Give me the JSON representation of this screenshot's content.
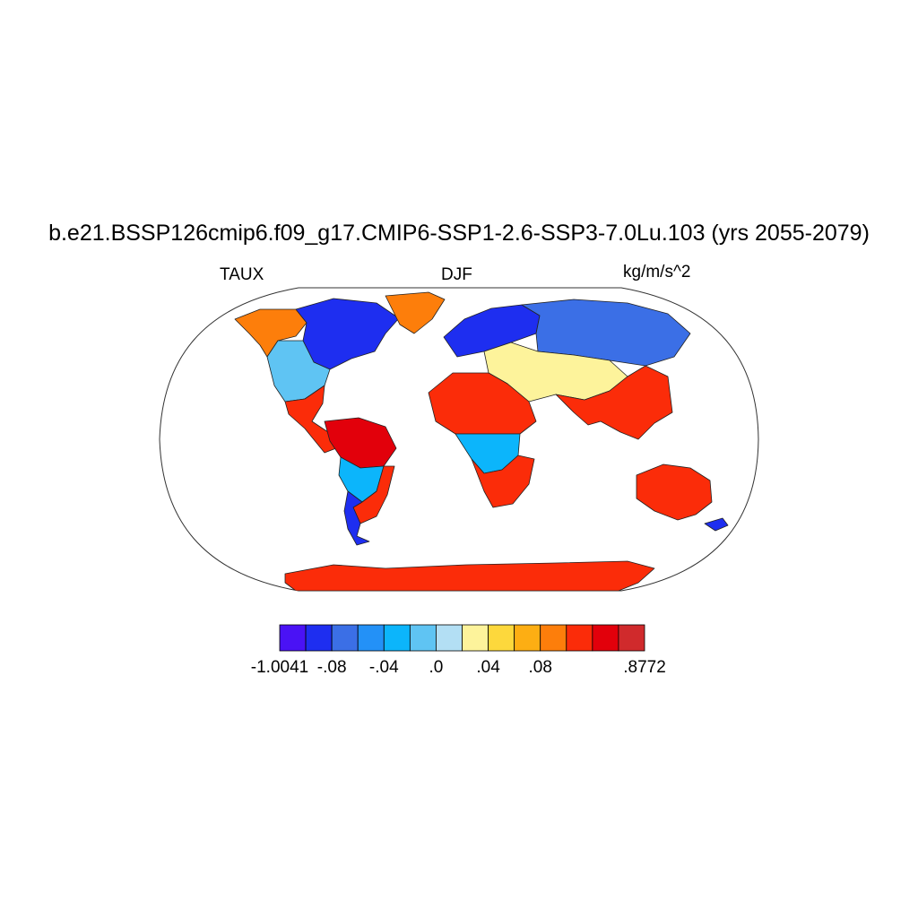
{
  "title": "b.e21.BSSP126cmip6.f09_g17.CMIP6-SSP1-2.6-SSP3-7.0Lu.103 (yrs 2055-2079)",
  "left_label": "TAUX",
  "center_label": "DJF",
  "right_label": "kg/m/s^2",
  "colorbar": {
    "colors": [
      "#4a12f5",
      "#1e2ef0",
      "#3b6fe6",
      "#2391f7",
      "#0cb5fb",
      "#5fc4f3",
      "#b3dff4",
      "#fdf39b",
      "#fdd83c",
      "#fdae13",
      "#fd7e0b",
      "#fb2c09",
      "#e2000b",
      "#d02a2c"
    ],
    "tick_labels": [
      "-1.0041",
      "-.08",
      "-.04",
      ".0",
      ".04",
      ".08",
      ".8772"
    ]
  },
  "chart_data": {
    "type": "heatmap",
    "projection": "Robinson (global, land only)",
    "variable": "TAUX",
    "season": "DJF",
    "units": "kg/m/s^2",
    "levels": [
      -1.0041,
      -0.1,
      -0.08,
      -0.06,
      -0.04,
      -0.02,
      0.0,
      0.02,
      0.04,
      0.06,
      0.08,
      0.1,
      0.12,
      0.8772
    ],
    "regions": [
      {
        "name": "Alaska / NW Canada",
        "value": 0.09
      },
      {
        "name": "Canada interior & Great Lakes",
        "value": -0.09
      },
      {
        "name": "Greenland",
        "value": 0.08
      },
      {
        "name": "Western United States",
        "value": -0.02
      },
      {
        "name": "Mexico & Central America",
        "value": 0.11
      },
      {
        "name": "Northern South America",
        "value": 0.12
      },
      {
        "name": "Central South America",
        "value": -0.03
      },
      {
        "name": "Southeast South America",
        "value": 0.1
      },
      {
        "name": "Patagonia",
        "value": -0.09
      },
      {
        "name": "Northern Europe & Scandinavia",
        "value": -0.09
      },
      {
        "name": "Siberia",
        "value": -0.07
      },
      {
        "name": "Middle East & Central Asia",
        "value": 0.02
      },
      {
        "name": "North Africa / Sahara",
        "value": 0.11
      },
      {
        "name": "Central Africa",
        "value": -0.03
      },
      {
        "name": "Southern Africa",
        "value": 0.1
      },
      {
        "name": "India & Southeast Asia",
        "value": 0.1
      },
      {
        "name": "Australia",
        "value": 0.1
      },
      {
        "name": "New Zealand",
        "value": -0.09
      },
      {
        "name": "Antarctica",
        "value": 0.11
      }
    ]
  }
}
